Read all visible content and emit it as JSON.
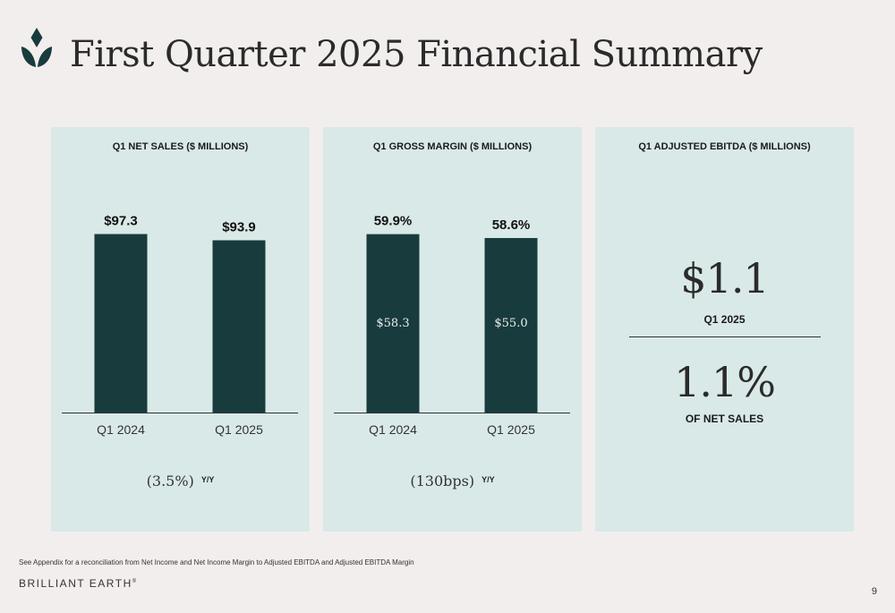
{
  "page": {
    "title": "First Quarter 2025 Financial Summary",
    "footnote": "See Appendix for a reconciliation from Net Income and Net Income Margin to Adjusted EBITDA and Adjusted EBITDA Margin",
    "brand": "BRILLIANT EARTH",
    "brand_mark": "®",
    "page_number": "9",
    "brand_color": "#183b3d",
    "panel_color": "#d9e9e8"
  },
  "chart_data": [
    {
      "type": "bar",
      "title": "Q1 NET SALES ($ MILLIONS)",
      "categories": [
        "Q1 2024",
        "Q1 2025"
      ],
      "values": [
        97.3,
        93.9
      ],
      "value_labels": [
        "$97.3",
        "$93.9"
      ],
      "ylim": [
        0,
        100
      ],
      "change": "(3.5%)",
      "change_suffix": "Y/Y"
    },
    {
      "type": "bar",
      "title": "Q1 GROSS MARGIN ($ MILLIONS)",
      "categories": [
        "Q1 2024",
        "Q1 2025"
      ],
      "values": [
        59.9,
        58.6
      ],
      "value_labels": [
        "59.9%",
        "58.6%"
      ],
      "inner_labels": [
        "$58.3",
        "$55.0"
      ],
      "ylim": [
        0,
        61.6
      ],
      "change": "(130bps)",
      "change_suffix": "Y/Y"
    }
  ],
  "ebitda": {
    "title": "Q1 ADJUSTED EBITDA  ($ MILLIONS)",
    "value": "$1.1",
    "value_label": "Q1 2025",
    "margin": "1.1%",
    "margin_label": "OF NET SALES"
  }
}
